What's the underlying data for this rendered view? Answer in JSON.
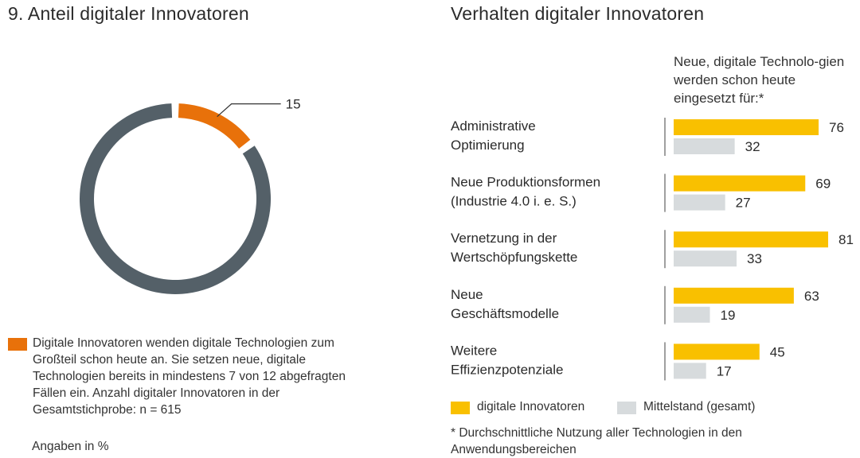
{
  "colors": {
    "orange": "#e8710a",
    "dark": "#546068",
    "yellow": "#f9c000",
    "gray": "#d7dbdd",
    "axis": "#808080"
  },
  "left": {
    "title": "9. Anteil digitaler Innovatoren",
    "legend_text": "Digitale Innovatoren wenden digitale Technologien zum Großteil schon heute an. Sie setzen neue, digitale Technologien bereits in mindestens 7 von 12 abgefragten Fällen ein. Anzahl digitaler Innovatoren in der Gesamtstichprobe: n = 615",
    "unit_note": "Angaben in %"
  },
  "right": {
    "title": "Verhalten digitaler Innovatoren",
    "question": "Neue, digitale Technolo-gien werden schon heute eingesetzt für:*",
    "legend": [
      "digitale Innovatoren",
      "Mittelstand (gesamt)"
    ],
    "footnote": "* Durchschnittliche Nutzung aller Technologien in den Anwendungsbereichen"
  },
  "chart_data": [
    {
      "type": "pie",
      "title": "9. Anteil digitaler Innovatoren",
      "slices": [
        {
          "label": "Digitale Innovatoren",
          "value": 15,
          "value_label": "15"
        },
        {
          "label": "",
          "value": 85,
          "value_label": ""
        }
      ],
      "unit": "%"
    },
    {
      "type": "bar",
      "orientation": "horizontal",
      "title": "Verhalten digitaler Innovatoren",
      "categories": [
        [
          "Administrative",
          "Optimierung"
        ],
        [
          "Neue Produktionsformen",
          "(Industrie 4.0 i. e. S.)"
        ],
        [
          "Vernetzung in der",
          "Wertschöpfungskette"
        ],
        [
          "Neue",
          "Geschäftsmodelle"
        ],
        [
          "Weitere",
          "Effizienzpotenziale"
        ]
      ],
      "series": [
        {
          "name": "digitale Innovatoren",
          "values": [
            76,
            69,
            81,
            63,
            45
          ]
        },
        {
          "name": "Mittelstand (gesamt)",
          "values": [
            32,
            27,
            33,
            19,
            17
          ]
        }
      ],
      "xlim": [
        0,
        81
      ],
      "legend_position": "bottom"
    }
  ]
}
